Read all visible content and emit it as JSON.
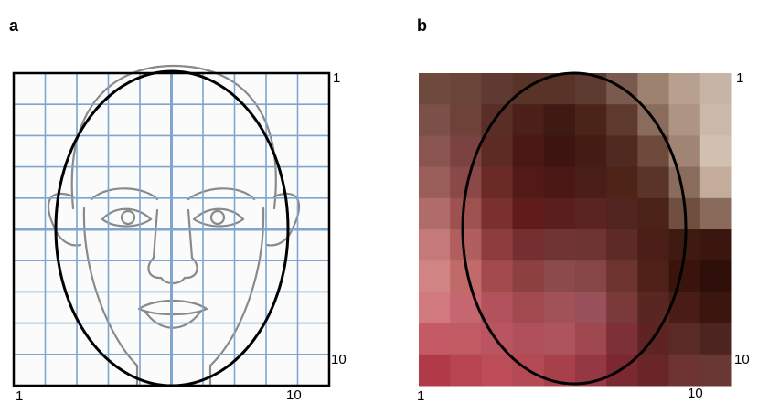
{
  "panels": [
    {
      "label": "a",
      "top_right": "1",
      "bottom_right": "10",
      "bottom_left": "1",
      "bottom_middle": "10"
    },
    {
      "label": "b",
      "top_right": "1",
      "bottom_right": "10",
      "bottom_left": "1",
      "bottom_middle": "10"
    }
  ]
}
